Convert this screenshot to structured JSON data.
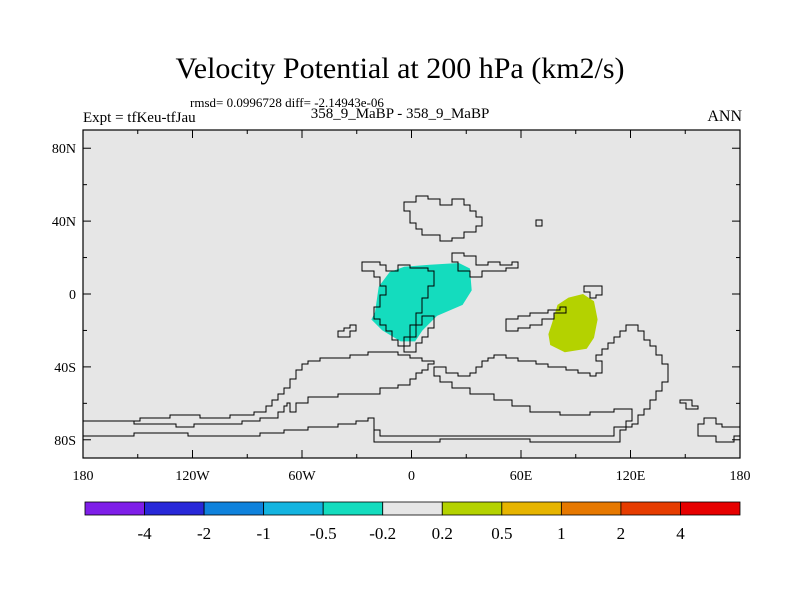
{
  "header": {
    "title": "Velocity Potential at 200 hPa (km2/s)",
    "stats": "rmsd= 0.0996728 diff= -2.14943e-06",
    "expt": "Expt = tfKeu-tfJau",
    "case": "358_9_MaBP - 358_9_MaBP",
    "season": "ANN"
  },
  "chart_data": {
    "type": "heatmap",
    "title": "Velocity Potential at 200 hPa (km2/s)",
    "projection": "cylindrical-equidistant",
    "xlim": [
      -180,
      180
    ],
    "ylim": [
      -90,
      90
    ],
    "x_ticks": [
      {
        "value": -180,
        "label": "180"
      },
      {
        "value": -120,
        "label": "120W"
      },
      {
        "value": -60,
        "label": "60W"
      },
      {
        "value": 0,
        "label": "0"
      },
      {
        "value": 60,
        "label": "60E"
      },
      {
        "value": 120,
        "label": "120E"
      },
      {
        "value": 180,
        "label": "180"
      }
    ],
    "y_ticks": [
      {
        "value": 80,
        "label": "80N"
      },
      {
        "value": 40,
        "label": "40N"
      },
      {
        "value": 0,
        "label": "0"
      },
      {
        "value": -40,
        "label": "40S"
      },
      {
        "value": -80,
        "label": "80S"
      }
    ],
    "colorbar": {
      "colors": [
        "#7e1ee8",
        "#2828d8",
        "#0f82dc",
        "#14b4e0",
        "#14dcbe",
        "#e6e6e6",
        "#b4d200",
        "#e6b400",
        "#e67800",
        "#e63c00",
        "#e60000"
      ],
      "labels": [
        "-4",
        "-2",
        "-1",
        "-0.5",
        "-0.2",
        "0.2",
        "0.5",
        "1",
        "2",
        "4"
      ]
    },
    "background_color": "#e6e6e6",
    "anomalies": [
      {
        "range": "-0.5 to -0.2",
        "color": "#14dcbe",
        "boundary": [
          [
            -20,
            -10
          ],
          [
            -18,
            4
          ],
          [
            -12,
            12
          ],
          [
            -4,
            15
          ],
          [
            10,
            16
          ],
          [
            26,
            17
          ],
          [
            32,
            14
          ],
          [
            33,
            2
          ],
          [
            28,
            -6
          ],
          [
            14,
            -12
          ],
          [
            6,
            -20
          ],
          [
            2,
            -26
          ],
          [
            -6,
            -26
          ],
          [
            -16,
            -20
          ],
          [
            -22,
            -14
          ]
        ]
      },
      {
        "range": "0.2 to 0.5",
        "color": "#b4d200",
        "boundary": [
          [
            77,
            -16
          ],
          [
            80,
            -6
          ],
          [
            86,
            -2
          ],
          [
            94,
            0
          ],
          [
            100,
            -4
          ],
          [
            102,
            -14
          ],
          [
            100,
            -24
          ],
          [
            96,
            -30
          ],
          [
            84,
            -32
          ],
          [
            76,
            -28
          ],
          [
            75,
            -22
          ]
        ]
      }
    ]
  }
}
